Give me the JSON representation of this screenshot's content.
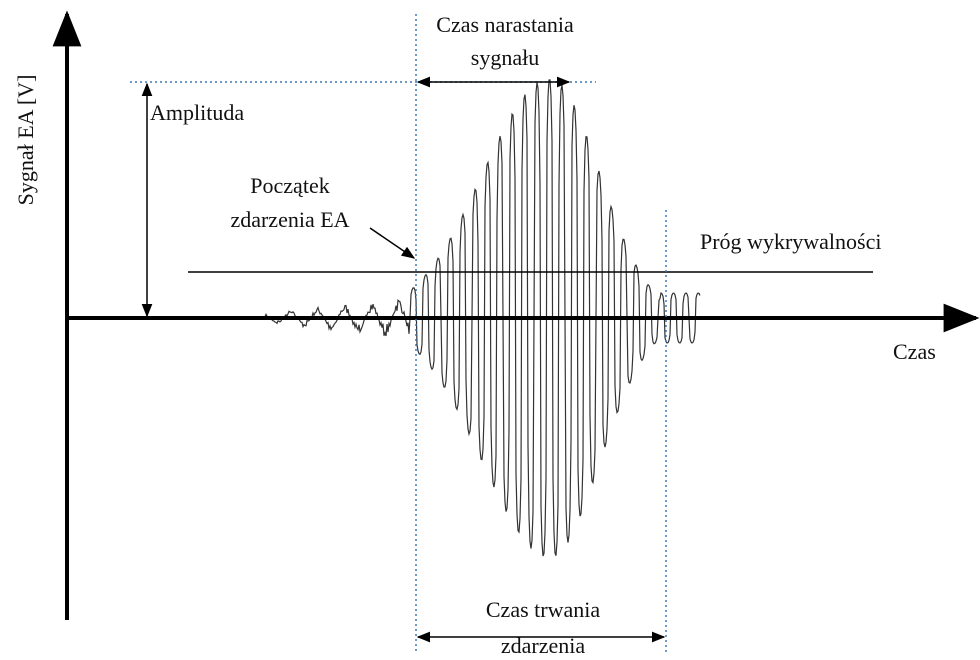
{
  "y_axis_label": "Sygnał EA [V]",
  "x_axis_label": "Czas",
  "amplitude_label": "Amplituda",
  "event_start_label": [
    "Początek",
    "zdarzenia EA"
  ],
  "rise_time_label": [
    "Czas narastania",
    "sygnału"
  ],
  "threshold_label": "Próg wykrywalności",
  "duration_label": [
    "Czas trwania",
    "zdarzenia"
  ]
}
